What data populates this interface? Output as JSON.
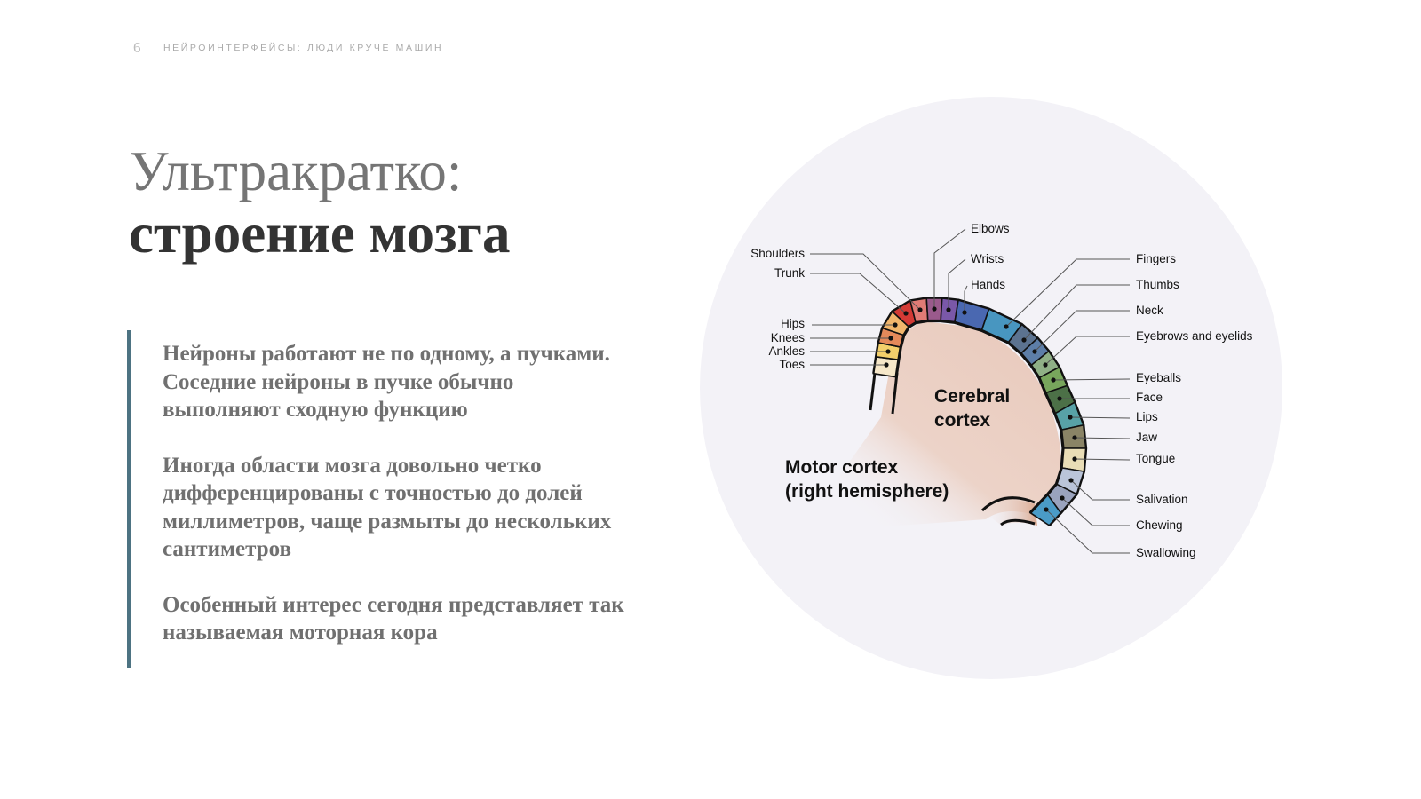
{
  "header": {
    "page_number": "6",
    "title": "НЕЙРОИНТЕРФЕЙСЫ: ЛЮДИ КРУЧЕ МАШИН"
  },
  "slide": {
    "title_line1": "Ультракратко:",
    "title_line2": "строение мозга",
    "paragraphs": [
      "Нейроны работают не по одному, а пуч­ками. Соседние нейроны в пучке обычно выполняют сходную функцию",
      "Иногда области мозга довольно четко дифференцированы с точностью до долей миллиметров, чаще размыты до несколь­ких сантиметров",
      "Особенный интерес сегодня представляет так называемая моторная кора"
    ],
    "accent_color": "#4d7382"
  },
  "diagram": {
    "circle_color": "#f3f2f7",
    "cortex_label": [
      "Cerebral",
      "cortex"
    ],
    "motor_label": [
      "Motor cortex",
      "(right hemisphere)"
    ],
    "regions": [
      {
        "name": "Toes",
        "color": "#f6e7c9"
      },
      {
        "name": "Ankles",
        "color": "#f3cf6b"
      },
      {
        "name": "Knees",
        "color": "#e4895a"
      },
      {
        "name": "Hips",
        "color": "#f0b56c"
      },
      {
        "name": "Trunk",
        "color": "#d33a35"
      },
      {
        "name": "Shoulders",
        "color": "#e07b75"
      },
      {
        "name": "Elbows",
        "color": "#9a5a8c"
      },
      {
        "name": "Wrists",
        "color": "#7a58a8"
      },
      {
        "name": "Hands",
        "color": "#4a68b1"
      },
      {
        "name": "Fingers",
        "color": "#4896c0"
      },
      {
        "name": "Thumbs",
        "color": "#5c7390"
      },
      {
        "name": "Neck",
        "color": "#5d7ea8"
      },
      {
        "name": "Eyebrows and eyelids",
        "color": "#8fb086"
      },
      {
        "name": "Eyeballs",
        "color": "#78a65c"
      },
      {
        "name": "Face",
        "color": "#4c7047"
      },
      {
        "name": "Lips",
        "color": "#58a2a7"
      },
      {
        "name": "Jaw",
        "color": "#8a8466"
      },
      {
        "name": "Tongue",
        "color": "#e9ddb6"
      },
      {
        "name": "Salivation",
        "color": "#bac4d9"
      },
      {
        "name": "Chewing",
        "color": "#9aa3be"
      },
      {
        "name": "Swallowing",
        "color": "#4a9bc7"
      }
    ]
  }
}
